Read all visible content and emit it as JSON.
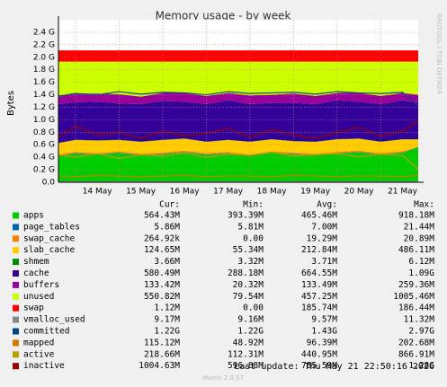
{
  "chart_data": {
    "type": "area",
    "title": "Memory usage - by week",
    "y_label": "Bytes",
    "side_label": "RRDTOOL / TOBI OETIKER",
    "legend_columns": [
      "Cur:",
      "Min:",
      "Avg:",
      "Max:"
    ],
    "last_update": "Last update: Thu May 21 22:50:16 2026",
    "footer": "Munin 2.0.57",
    "grid": true,
    "x": [
      13.61,
      14.0,
      14.5,
      15.0,
      15.5,
      16.0,
      16.5,
      17.0,
      17.5,
      18.0,
      18.5,
      19.0,
      19.5,
      20.0,
      20.5,
      21.0,
      21.5,
      21.86
    ],
    "xlim": [
      13.61,
      21.86
    ],
    "xticks": [
      {
        "value": 14.5,
        "label": "14 May"
      },
      {
        "value": 15.5,
        "label": "15 May"
      },
      {
        "value": 16.5,
        "label": "16 May"
      },
      {
        "value": 17.5,
        "label": "17 May"
      },
      {
        "value": 18.5,
        "label": "18 May"
      },
      {
        "value": 19.5,
        "label": "19 May"
      },
      {
        "value": 20.5,
        "label": "20 May"
      },
      {
        "value": 21.5,
        "label": "21 May"
      }
    ],
    "ylim": [
      0,
      2.6
    ],
    "yticks": [
      {
        "value": 0,
        "label": "0.0"
      },
      {
        "value": 0.2,
        "label": "0.2 G"
      },
      {
        "value": 0.4,
        "label": "0.4 G"
      },
      {
        "value": 0.6,
        "label": "0.6 G"
      },
      {
        "value": 0.8,
        "label": "0.8 G"
      },
      {
        "value": 1.0,
        "label": "1.0 G"
      },
      {
        "value": 1.2,
        "label": "1.2 G"
      },
      {
        "value": 1.4,
        "label": "1.4 G"
      },
      {
        "value": 1.6,
        "label": "1.6 G"
      },
      {
        "value": 1.8,
        "label": "1.8 G"
      },
      {
        "value": 2.0,
        "label": "2.0 G"
      },
      {
        "value": 2.2,
        "label": "2.2 G"
      },
      {
        "value": 2.4,
        "label": "2.4 G"
      }
    ],
    "series": [
      {
        "name": "apps",
        "style": "area",
        "color": "#00cc00",
        "cur": "564.43M",
        "min": "393.39M",
        "avg": "465.46M",
        "max": "918.18M",
        "values": [
          0.42,
          0.46,
          0.44,
          0.47,
          0.43,
          0.45,
          0.48,
          0.44,
          0.46,
          0.42,
          0.47,
          0.45,
          0.43,
          0.46,
          0.48,
          0.44,
          0.47,
          0.56
        ]
      },
      {
        "name": "page_tables",
        "style": "area",
        "color": "#0066b3",
        "cur": "5.86M",
        "min": "5.81M",
        "avg": "7.00M",
        "max": "21.44M",
        "values": [
          0.006,
          0.006,
          0.006,
          0.006,
          0.006,
          0.006,
          0.006,
          0.006,
          0.006,
          0.006,
          0.006,
          0.006,
          0.006,
          0.006,
          0.006,
          0.006,
          0.006,
          0.006
        ]
      },
      {
        "name": "swap_cache",
        "style": "area",
        "color": "#ff8000",
        "cur": "264.92k",
        "min": "0.00",
        "avg": "19.29M",
        "max": "20.89M",
        "values": [
          0.02,
          0.02,
          0.02,
          0.02,
          0.02,
          0.02,
          0.02,
          0.02,
          0.02,
          0.02,
          0.02,
          0.02,
          0.02,
          0.02,
          0.02,
          0.02,
          0.02,
          0.0003
        ]
      },
      {
        "name": "slab_cache",
        "style": "area",
        "color": "#ffcc00",
        "cur": "124.65M",
        "min": "55.34M",
        "avg": "212.84M",
        "max": "486.11M",
        "values": [
          0.18,
          0.19,
          0.2,
          0.18,
          0.19,
          0.2,
          0.19,
          0.18,
          0.19,
          0.2,
          0.19,
          0.18,
          0.19,
          0.2,
          0.19,
          0.18,
          0.19,
          0.12
        ]
      },
      {
        "name": "shmem",
        "style": "area",
        "color": "#008f00",
        "cur": "3.66M",
        "min": "3.32M",
        "avg": "3.71M",
        "max": "6.12M",
        "values": [
          0.004,
          0.004,
          0.004,
          0.004,
          0.004,
          0.004,
          0.004,
          0.004,
          0.004,
          0.004,
          0.004,
          0.004,
          0.004,
          0.004,
          0.004,
          0.004,
          0.004,
          0.004
        ]
      },
      {
        "name": "cache",
        "style": "area",
        "color": "#330099",
        "cur": "580.49M",
        "min": "288.18M",
        "avg": "664.55M",
        "max": "1.09G",
        "values": [
          0.62,
          0.6,
          0.62,
          0.58,
          0.6,
          0.62,
          0.59,
          0.6,
          0.63,
          0.6,
          0.58,
          0.61,
          0.6,
          0.62,
          0.59,
          0.6,
          0.62,
          0.58
        ]
      },
      {
        "name": "buffers",
        "style": "area",
        "color": "#990099",
        "cur": "133.42M",
        "min": "20.32M",
        "avg": "133.49M",
        "max": "259.36M",
        "values": [
          0.12,
          0.14,
          0.13,
          0.15,
          0.12,
          0.13,
          0.14,
          0.13,
          0.12,
          0.14,
          0.13,
          0.15,
          0.13,
          0.12,
          0.14,
          0.13,
          0.12,
          0.13
        ]
      },
      {
        "name": "unused",
        "style": "area",
        "color": "#ccff00",
        "cur": "550.82M",
        "min": "79.54M",
        "avg": "457.25M",
        "max": "1005.46M",
        "values": [
          0.56,
          0.51,
          0.51,
          0.52,
          0.56,
          0.5,
          0.5,
          0.55,
          0.5,
          0.54,
          0.53,
          0.51,
          0.55,
          0.5,
          0.5,
          0.55,
          0.5,
          0.53
        ]
      },
      {
        "name": "swap",
        "style": "area",
        "color": "#ff0000",
        "cur": "1.12M",
        "min": "0.00",
        "avg": "185.74M",
        "max": "186.44M",
        "values": [
          0.18,
          0.18,
          0.18,
          0.18,
          0.18,
          0.18,
          0.18,
          0.18,
          0.18,
          0.18,
          0.18,
          0.18,
          0.18,
          0.18,
          0.18,
          0.18,
          0.18,
          0.18
        ]
      },
      {
        "name": "vmalloc_used",
        "style": "line",
        "color": "#888888",
        "cur": "9.17M",
        "min": "9.16M",
        "avg": "9.57M",
        "max": "11.32M",
        "values": [
          0.009,
          0.009,
          0.009,
          0.009,
          0.009,
          0.009,
          0.009,
          0.009,
          0.009,
          0.009,
          0.009,
          0.009,
          0.009,
          0.009,
          0.009,
          0.009,
          0.009,
          0.009
        ]
      },
      {
        "name": "committed",
        "style": "line",
        "color": "#00487d",
        "cur": "1.22G",
        "min": "1.22G",
        "avg": "1.43G",
        "max": "2.97G",
        "values": [
          1.38,
          1.42,
          1.4,
          1.45,
          1.41,
          1.44,
          1.43,
          1.4,
          1.45,
          1.42,
          1.43,
          1.44,
          1.41,
          1.45,
          1.43,
          1.42,
          1.44,
          1.22
        ]
      },
      {
        "name": "mapped",
        "style": "line",
        "color": "#cc7a00",
        "cur": "115.12M",
        "min": "48.92M",
        "avg": "96.39M",
        "max": "202.68M",
        "values": [
          0.1,
          0.09,
          0.11,
          0.1,
          0.09,
          0.1,
          0.11,
          0.09,
          0.1,
          0.1,
          0.09,
          0.11,
          0.1,
          0.09,
          0.1,
          0.1,
          0.09,
          0.11
        ]
      },
      {
        "name": "active",
        "style": "line",
        "color": "#b8a000",
        "cur": "218.66M",
        "min": "112.31M",
        "avg": "440.95M",
        "max": "866.91M",
        "values": [
          0.44,
          0.4,
          0.46,
          0.38,
          0.44,
          0.42,
          0.47,
          0.4,
          0.45,
          0.43,
          0.48,
          0.42,
          0.44,
          0.46,
          0.41,
          0.45,
          0.43,
          0.21
        ]
      },
      {
        "name": "inactive",
        "style": "line",
        "color": "#990000",
        "cur": "1004.63M",
        "min": "596.88M",
        "avg": "785.59M",
        "max": "1.28G",
        "values": [
          0.72,
          0.9,
          0.76,
          0.8,
          0.7,
          0.82,
          0.74,
          0.78,
          0.86,
          0.72,
          0.84,
          0.76,
          0.7,
          0.8,
          0.88,
          0.74,
          0.82,
          0.98
        ]
      }
    ]
  }
}
